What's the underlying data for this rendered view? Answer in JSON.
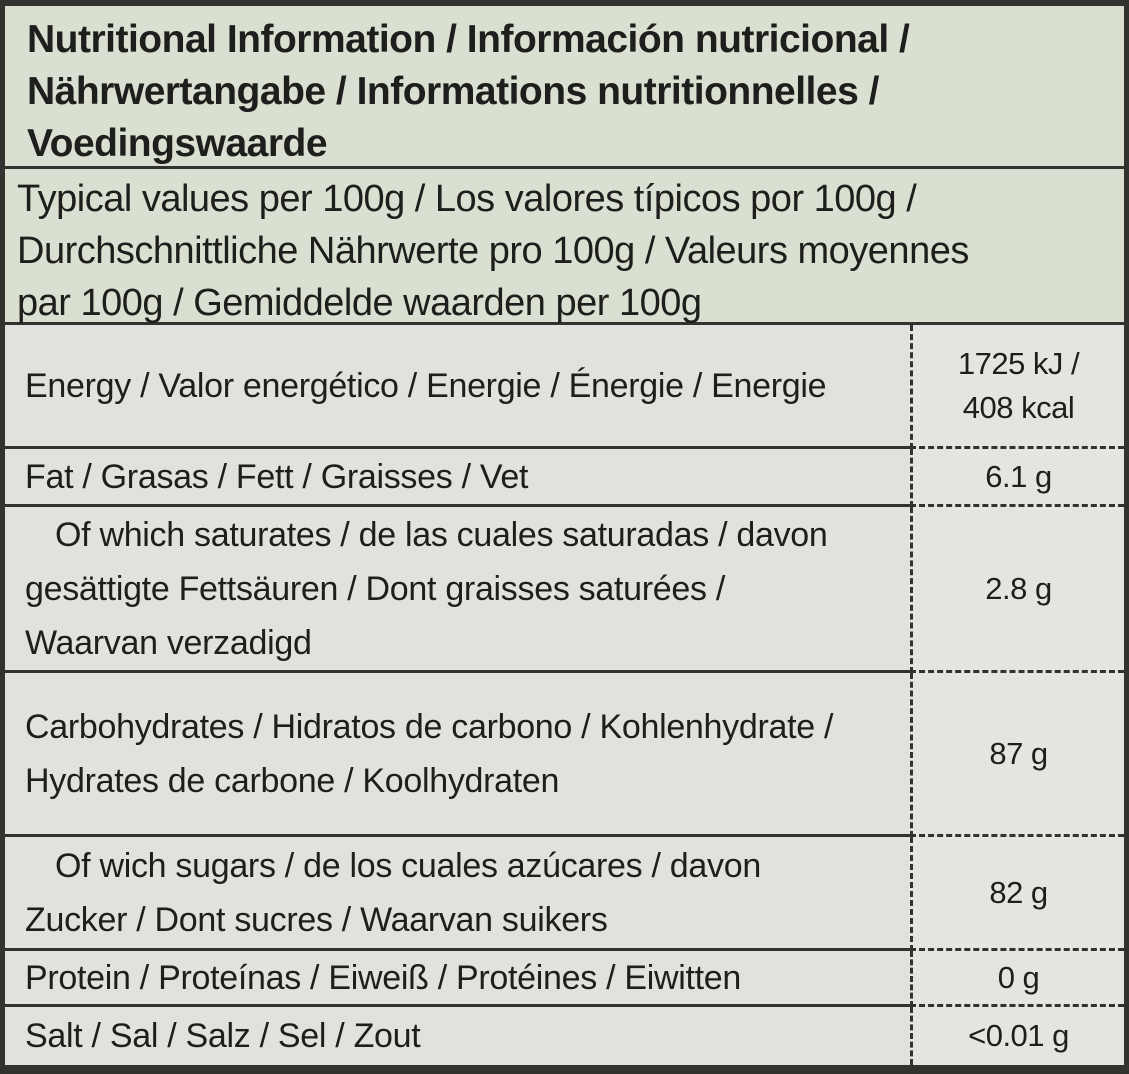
{
  "header": {
    "title_lines": [
      "Nutritional Information / Información nutricional /",
      "Nährwertangabe / Informations nutritionnelles /",
      "Voedingswaarde"
    ],
    "subtitle_lines": [
      "Typical values per 100g / Los valores típicos por 100g /",
      "Durchschnittliche Nährwerte pro 100g / Valeurs moyennes",
      "par 100g / Gemiddelde waarden per 100g"
    ]
  },
  "rows": [
    {
      "label": "Energy / Valor energético / Energie / Énergie / Energie",
      "value": "1725 kJ /",
      "value2": "408 kcal",
      "sub_item": false
    },
    {
      "label": "Fat / Grasas / Fett / Graisses / Vet",
      "value": "6.1 g",
      "sub_item": false
    },
    {
      "label": "Of which saturates / de las cuales saturadas / davon gesättigte Fettsäuren / Dont graisses saturées / Waarvan verzadigd",
      "value": "2.8 g",
      "sub_item": true
    },
    {
      "label": "Carbohydrates / Hidratos de carbono / Kohlenhydrate / Hydrates de carbone / Koolhydraten",
      "value": "87 g",
      "sub_item": false
    },
    {
      "label": "Of wich sugars / de los cuales azúcares / davon Zucker / Dont sucres / Waarvan suikers",
      "value": "82 g",
      "sub_item": true
    },
    {
      "label": "Protein / Proteínas / Eiweiß / Protéines / Eiwitten",
      "value": "0 g",
      "sub_item": false
    },
    {
      "label": "Salt / Sal / Salz / Sel / Zout",
      "value": "<0.01 g",
      "sub_item": false
    }
  ],
  "colors": {
    "border": "#32322e",
    "header_bg": "#d9e0d1",
    "row_bg": "#e0e2dd",
    "value_bg": "#e3e5e0",
    "text": "#1e1e1c"
  }
}
